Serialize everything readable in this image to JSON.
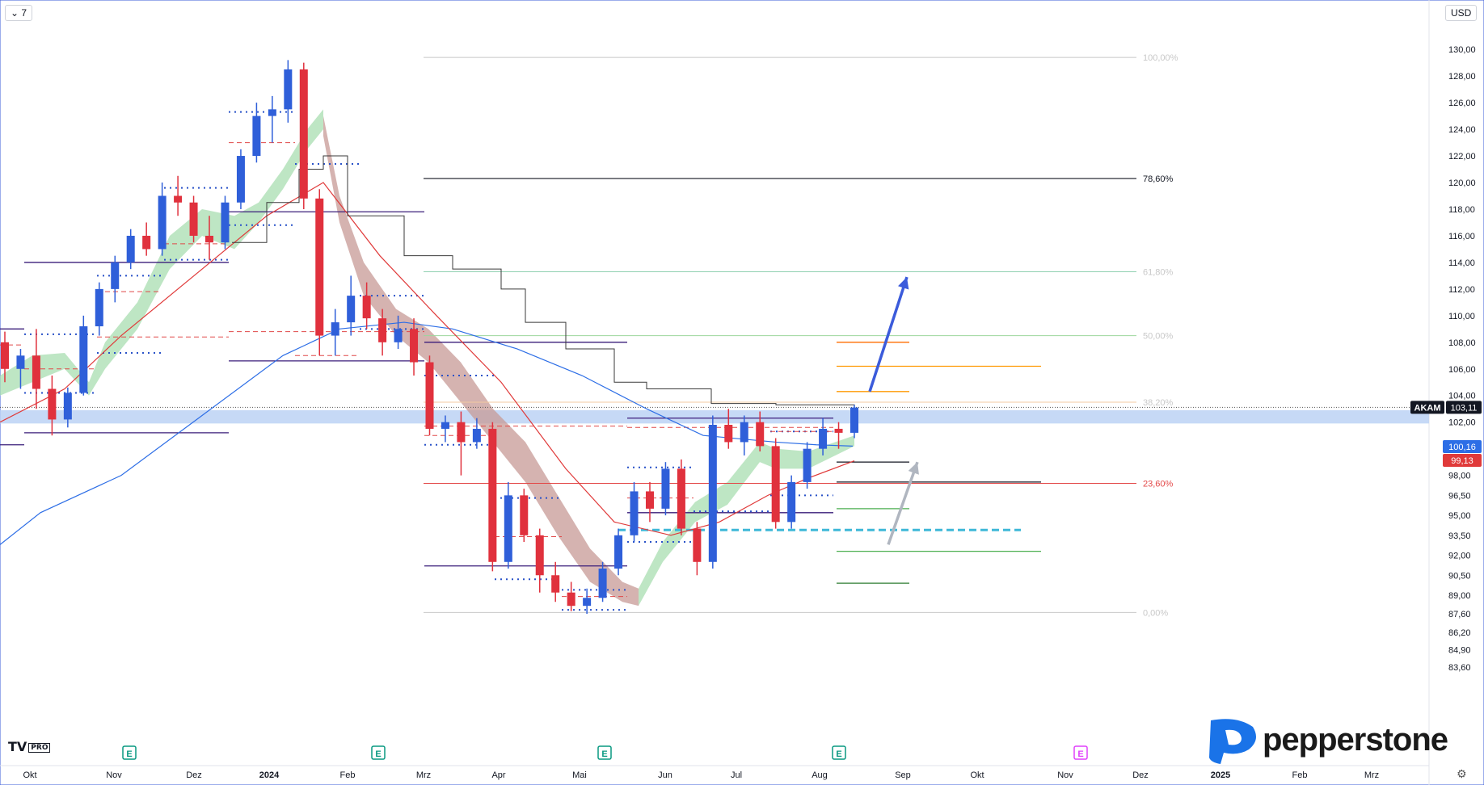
{
  "toolbar": {
    "interval_label": "7",
    "currency_label": "USD"
  },
  "branding": {
    "tv_label": "TV",
    "pro_label": "PRO",
    "pepperstone_label": "pepperstone"
  },
  "colors": {
    "up": "#2f5fd9",
    "down": "#e0313d",
    "price_tag": "#131722",
    "ma_blue": "#2d6ee6",
    "ma_red": "#e03a3a"
  },
  "chart_data": {
    "type": "candlestick",
    "symbol": "AKAM",
    "title": "",
    "xlabel": "",
    "ylabel": "",
    "ylim": [
      83.6,
      130.8
    ],
    "y_ticks": [
      "130,00",
      "128,00",
      "126,00",
      "124,00",
      "122,00",
      "120,00",
      "118,00",
      "116,00",
      "114,00",
      "112,00",
      "110,00",
      "108,00",
      "106,00",
      "104,00",
      "102,00",
      "100,16",
      "99,13",
      "98,00",
      "96,50",
      "95,00",
      "93,50",
      "92,00",
      "90,50",
      "89,00",
      "87,60",
      "86,20",
      "84,90",
      "83,60"
    ],
    "x_ticks": [
      "Okt",
      "Nov",
      "Dez",
      "2024",
      "Feb",
      "Mrz",
      "Apr",
      "Mai",
      "Jun",
      "Jul",
      "Aug",
      "Sep",
      "Okt",
      "Nov",
      "Dez",
      "2025",
      "Feb",
      "Mrz"
    ],
    "last_price": {
      "label": "AKAM",
      "value": "103,11"
    },
    "indicator_tags": [
      {
        "value": "100,16",
        "color": "#2d6ee6"
      },
      {
        "value": "99,13",
        "color": "#e03a3a"
      }
    ],
    "fibonacci": {
      "levels": [
        {
          "label": "100,00%",
          "price": 129.4
        },
        {
          "label": "78,60%",
          "price": 120.3
        },
        {
          "label": "61,80%",
          "price": 113.3
        },
        {
          "label": "50,00%",
          "price": 108.5
        },
        {
          "label": "38,20%",
          "price": 103.5
        },
        {
          "label": "23,60%",
          "price": 97.4
        },
        {
          "label": "0,00%",
          "price": 87.7
        }
      ]
    },
    "earnings_markers": [
      "E",
      "E",
      "E",
      "E",
      "E"
    ],
    "candles_weekly": [
      {
        "o": 108.0,
        "h": 108.8,
        "l": 105.0,
        "c": 106.0
      },
      {
        "o": 106.0,
        "h": 107.5,
        "l": 104.5,
        "c": 107.0
      },
      {
        "o": 107.0,
        "h": 109.0,
        "l": 103.0,
        "c": 104.5
      },
      {
        "o": 104.5,
        "h": 105.5,
        "l": 101.0,
        "c": 102.2
      },
      {
        "o": 102.2,
        "h": 104.6,
        "l": 101.6,
        "c": 104.2
      },
      {
        "o": 104.2,
        "h": 110.0,
        "l": 104.0,
        "c": 109.2
      },
      {
        "o": 109.2,
        "h": 112.5,
        "l": 108.5,
        "c": 112.0
      },
      {
        "o": 112.0,
        "h": 114.5,
        "l": 111.0,
        "c": 114.0
      },
      {
        "o": 114.0,
        "h": 116.5,
        "l": 113.5,
        "c": 116.0
      },
      {
        "o": 116.0,
        "h": 117.0,
        "l": 114.5,
        "c": 115.0
      },
      {
        "o": 115.0,
        "h": 120.0,
        "l": 114.5,
        "c": 119.0
      },
      {
        "o": 119.0,
        "h": 120.5,
        "l": 117.5,
        "c": 118.5
      },
      {
        "o": 118.5,
        "h": 119.0,
        "l": 115.5,
        "c": 116.0
      },
      {
        "o": 116.0,
        "h": 117.5,
        "l": 114.2,
        "c": 115.5
      },
      {
        "o": 115.5,
        "h": 119.0,
        "l": 115.0,
        "c": 118.5
      },
      {
        "o": 118.5,
        "h": 122.5,
        "l": 118.0,
        "c": 122.0
      },
      {
        "o": 122.0,
        "h": 126.0,
        "l": 121.5,
        "c": 125.0
      },
      {
        "o": 125.0,
        "h": 126.5,
        "l": 123.0,
        "c": 125.5
      },
      {
        "o": 125.5,
        "h": 129.2,
        "l": 124.5,
        "c": 128.5
      },
      {
        "o": 128.5,
        "h": 129.0,
        "l": 118.0,
        "c": 118.8
      },
      {
        "o": 118.8,
        "h": 119.5,
        "l": 107.0,
        "c": 108.5
      },
      {
        "o": 108.5,
        "h": 110.5,
        "l": 107.0,
        "c": 109.5
      },
      {
        "o": 109.5,
        "h": 113.0,
        "l": 108.5,
        "c": 111.5
      },
      {
        "o": 111.5,
        "h": 112.5,
        "l": 109.0,
        "c": 109.8
      },
      {
        "o": 109.8,
        "h": 110.5,
        "l": 107.0,
        "c": 108.0
      },
      {
        "o": 108.0,
        "h": 110.0,
        "l": 107.5,
        "c": 109.0
      },
      {
        "o": 109.0,
        "h": 109.8,
        "l": 105.5,
        "c": 106.5
      },
      {
        "o": 106.5,
        "h": 107.0,
        "l": 101.0,
        "c": 101.5
      },
      {
        "o": 101.5,
        "h": 102.5,
        "l": 100.5,
        "c": 102.0
      },
      {
        "o": 102.0,
        "h": 102.8,
        "l": 98.0,
        "c": 100.5
      },
      {
        "o": 100.5,
        "h": 102.3,
        "l": 100.0,
        "c": 101.5
      },
      {
        "o": 101.5,
        "h": 102.0,
        "l": 90.8,
        "c": 91.5
      },
      {
        "o": 91.5,
        "h": 97.5,
        "l": 91.0,
        "c": 96.5
      },
      {
        "o": 96.5,
        "h": 97.0,
        "l": 93.0,
        "c": 93.5
      },
      {
        "o": 93.5,
        "h": 94.0,
        "l": 89.2,
        "c": 90.5
      },
      {
        "o": 90.5,
        "h": 91.5,
        "l": 88.5,
        "c": 89.2
      },
      {
        "o": 89.2,
        "h": 90.0,
        "l": 87.8,
        "c": 88.2
      },
      {
        "o": 88.2,
        "h": 89.5,
        "l": 87.6,
        "c": 88.8
      },
      {
        "o": 88.8,
        "h": 91.5,
        "l": 88.5,
        "c": 91.0
      },
      {
        "o": 91.0,
        "h": 94.0,
        "l": 90.5,
        "c": 93.5
      },
      {
        "o": 93.5,
        "h": 97.5,
        "l": 93.0,
        "c": 96.8
      },
      {
        "o": 96.8,
        "h": 97.5,
        "l": 94.5,
        "c": 95.5
      },
      {
        "o": 95.5,
        "h": 99.0,
        "l": 95.0,
        "c": 98.5
      },
      {
        "o": 98.5,
        "h": 99.2,
        "l": 93.5,
        "c": 94.0
      },
      {
        "o": 94.0,
        "h": 94.5,
        "l": 90.5,
        "c": 91.5
      },
      {
        "o": 91.5,
        "h": 102.5,
        "l": 91.0,
        "c": 101.8
      },
      {
        "o": 101.8,
        "h": 103.0,
        "l": 100.0,
        "c": 100.5
      },
      {
        "o": 100.5,
        "h": 102.5,
        "l": 99.5,
        "c": 102.0
      },
      {
        "o": 102.0,
        "h": 102.8,
        "l": 99.8,
        "c": 100.2
      },
      {
        "o": 100.2,
        "h": 100.8,
        "l": 94.0,
        "c": 94.5
      },
      {
        "o": 94.5,
        "h": 98.0,
        "l": 94.0,
        "c": 97.5
      },
      {
        "o": 97.5,
        "h": 100.5,
        "l": 97.0,
        "c": 100.0
      },
      {
        "o": 100.0,
        "h": 102.3,
        "l": 99.5,
        "c": 101.5
      },
      {
        "o": 101.5,
        "h": 102.0,
        "l": 100.0,
        "c": 101.2
      },
      {
        "o": 101.2,
        "h": 103.3,
        "l": 100.8,
        "c": 103.1
      }
    ],
    "ma_blue": [
      [
        0,
        92.8
      ],
      [
        50,
        95.2
      ],
      [
        150,
        98.0
      ],
      [
        250,
        102.5
      ],
      [
        350,
        107.0
      ],
      [
        420,
        109.0
      ],
      [
        500,
        109.5
      ],
      [
        560,
        109.0
      ],
      [
        640,
        107.5
      ],
      [
        720,
        105.5
      ],
      [
        800,
        103.0
      ],
      [
        870,
        101.0
      ],
      [
        960,
        100.5
      ],
      [
        1010,
        100.3
      ],
      [
        1055,
        100.2
      ]
    ],
    "ma_red": [
      [
        0,
        102.0
      ],
      [
        80,
        104.5
      ],
      [
        150,
        108.5
      ],
      [
        250,
        113.5
      ],
      [
        330,
        117.5
      ],
      [
        400,
        120.0
      ],
      [
        470,
        114.5
      ],
      [
        540,
        110.0
      ],
      [
        620,
        105.0
      ],
      [
        700,
        98.5
      ],
      [
        760,
        94.5
      ],
      [
        830,
        93.5
      ],
      [
        890,
        94.5
      ],
      [
        950,
        96.5
      ],
      [
        1000,
        97.8
      ],
      [
        1057,
        99.1
      ]
    ],
    "ma_black_step": [
      [
        287,
        115.5
      ],
      [
        330,
        118.5
      ],
      [
        370,
        121.0
      ],
      [
        400,
        122.0
      ],
      [
        430,
        117.5
      ],
      [
        500,
        114.5
      ],
      [
        560,
        113.5
      ],
      [
        620,
        112.0
      ],
      [
        650,
        109.5
      ],
      [
        700,
        107.5
      ],
      [
        760,
        105.0
      ],
      [
        800,
        104.5
      ],
      [
        880,
        103.4
      ],
      [
        960,
        103.3
      ],
      [
        1057,
        103.0
      ]
    ],
    "ribbon_segments": [
      {
        "color": "green",
        "top": [
          [
            0,
            105.5
          ],
          [
            40,
            107.0
          ],
          [
            80,
            107.2
          ],
          [
            110,
            105.0
          ],
          [
            130,
            108.0
          ],
          [
            170,
            111.0
          ],
          [
            210,
            116.0
          ],
          [
            250,
            118.0
          ],
          [
            290,
            117.5
          ],
          [
            320,
            118.5
          ],
          [
            350,
            121.0
          ],
          [
            380,
            124.0
          ],
          [
            400,
            125.5
          ]
        ],
        "bottom": [
          [
            0,
            104.0
          ],
          [
            40,
            105.0
          ],
          [
            80,
            106.0
          ],
          [
            110,
            104.0
          ],
          [
            130,
            106.0
          ],
          [
            170,
            109.0
          ],
          [
            210,
            113.5
          ],
          [
            250,
            116.0
          ],
          [
            290,
            115.0
          ],
          [
            320,
            117.0
          ],
          [
            350,
            119.5
          ],
          [
            380,
            122.5
          ],
          [
            400,
            124.0
          ]
        ]
      },
      {
        "color": "brown",
        "top": [
          [
            400,
            125.0
          ],
          [
            420,
            119.0
          ],
          [
            450,
            114.0
          ],
          [
            490,
            110.5
          ],
          [
            530,
            109.0
          ],
          [
            570,
            106.5
          ],
          [
            610,
            103.0
          ],
          [
            650,
            100.5
          ],
          [
            690,
            96.5
          ],
          [
            730,
            92.5
          ],
          [
            770,
            90.0
          ],
          [
            790,
            89.5
          ]
        ],
        "bottom": [
          [
            400,
            123.5
          ],
          [
            420,
            117.0
          ],
          [
            450,
            111.5
          ],
          [
            490,
            108.5
          ],
          [
            530,
            106.5
          ],
          [
            570,
            103.5
          ],
          [
            610,
            100.5
          ],
          [
            650,
            97.5
          ],
          [
            690,
            93.5
          ],
          [
            730,
            90.0
          ],
          [
            770,
            88.5
          ],
          [
            790,
            88.2
          ]
        ]
      },
      {
        "color": "green",
        "top": [
          [
            790,
            89.5
          ],
          [
            820,
            93.0
          ],
          [
            860,
            96.0
          ],
          [
            900,
            97.5
          ],
          [
            940,
            100.5
          ],
          [
            960,
            100.0
          ],
          [
            1000,
            99.8
          ],
          [
            1057,
            101.0
          ]
        ],
        "bottom": [
          [
            790,
            88.2
          ],
          [
            820,
            91.5
          ],
          [
            860,
            94.5
          ],
          [
            900,
            95.8
          ],
          [
            940,
            99.0
          ],
          [
            960,
            98.5
          ],
          [
            1000,
            98.5
          ],
          [
            1057,
            100.2
          ]
        ]
      }
    ],
    "horizontal_lines": [
      {
        "x1": 0,
        "x2": 30,
        "price": 109.0,
        "color": "#3a1d7a"
      },
      {
        "x1": 30,
        "x2": 283,
        "price": 114.0,
        "color": "#3a1d7a"
      },
      {
        "x1": 30,
        "x2": 283,
        "price": 101.2,
        "color": "#3a1d7a"
      },
      {
        "x1": 0,
        "x2": 30,
        "price": 100.3,
        "color": "#3a1d7a"
      },
      {
        "x1": 283,
        "x2": 525,
        "price": 117.8,
        "color": "#3a1d7a"
      },
      {
        "x1": 283,
        "x2": 525,
        "price": 106.6,
        "color": "#3a1d7a"
      },
      {
        "x1": 525,
        "x2": 776,
        "price": 108.0,
        "color": "#3a1d7a"
      },
      {
        "x1": 525,
        "x2": 776,
        "price": 91.2,
        "color": "#3a1d7a"
      },
      {
        "x1": 776,
        "x2": 1031,
        "price": 102.3,
        "color": "#3a1d7a"
      },
      {
        "x1": 776,
        "x2": 1031,
        "price": 95.2,
        "color": "#3a1d7a"
      },
      {
        "x1": 1035,
        "x2": 1125,
        "price": 99.0,
        "color": "#131722"
      },
      {
        "x1": 1035,
        "x2": 1288,
        "price": 97.5,
        "color": "#131722"
      },
      {
        "x1": 1035,
        "x2": 1125,
        "price": 95.5,
        "color": "#4caf50"
      },
      {
        "x1": 1035,
        "x2": 1288,
        "price": 92.3,
        "color": "#4caf50"
      },
      {
        "x1": 1035,
        "x2": 1125,
        "price": 89.9,
        "color": "#2e7d32"
      },
      {
        "x1": 1035,
        "x2": 1125,
        "price": 108.0,
        "color": "#ff6d00"
      },
      {
        "x1": 1035,
        "x2": 1288,
        "price": 106.2,
        "color": "#ff9800"
      },
      {
        "x1": 1035,
        "x2": 1125,
        "price": 104.3,
        "color": "#ff9800"
      }
    ],
    "dotted_lines": [
      {
        "x1": 30,
        "x2": 120,
        "price": 104.2
      },
      {
        "x1": 30,
        "x2": 120,
        "price": 108.6
      },
      {
        "x1": 120,
        "x2": 200,
        "price": 107.2
      },
      {
        "x1": 120,
        "x2": 200,
        "price": 113.0
      },
      {
        "x1": 203,
        "x2": 283,
        "price": 119.6
      },
      {
        "x1": 203,
        "x2": 283,
        "price": 114.2
      },
      {
        "x1": 283,
        "x2": 365,
        "price": 125.3
      },
      {
        "x1": 283,
        "x2": 365,
        "price": 116.8
      },
      {
        "x1": 365,
        "x2": 445,
        "price": 121.4
      },
      {
        "x1": 445,
        "x2": 525,
        "price": 111.5
      },
      {
        "x1": 445,
        "x2": 525,
        "price": 109.0
      },
      {
        "x1": 525,
        "x2": 612,
        "price": 105.5
      },
      {
        "x1": 525,
        "x2": 612,
        "price": 100.3
      },
      {
        "x1": 612,
        "x2": 695,
        "price": 96.3
      },
      {
        "x1": 612,
        "x2": 695,
        "price": 90.2
      },
      {
        "x1": 695,
        "x2": 776,
        "price": 89.4
      },
      {
        "x1": 695,
        "x2": 776,
        "price": 87.9
      },
      {
        "x1": 776,
        "x2": 858,
        "price": 98.6
      },
      {
        "x1": 776,
        "x2": 858,
        "price": 93.0
      },
      {
        "x1": 858,
        "x2": 953,
        "price": 95.3
      },
      {
        "x1": 953,
        "x2": 1031,
        "price": 101.3
      },
      {
        "x1": 953,
        "x2": 1031,
        "price": 96.5
      }
    ],
    "dashed_red_lines": [
      {
        "x1": 0,
        "x2": 30,
        "price": 107.8
      },
      {
        "x1": 30,
        "x2": 120,
        "price": 106.0
      },
      {
        "x1": 120,
        "x2": 200,
        "price": 111.8
      },
      {
        "x1": 120,
        "x2": 283,
        "price": 108.4
      },
      {
        "x1": 203,
        "x2": 283,
        "price": 115.4
      },
      {
        "x1": 283,
        "x2": 365,
        "price": 123.0
      },
      {
        "x1": 283,
        "x2": 525,
        "price": 108.8
      },
      {
        "x1": 365,
        "x2": 445,
        "price": 107.0
      },
      {
        "x1": 525,
        "x2": 776,
        "price": 101.7
      },
      {
        "x1": 525,
        "x2": 612,
        "price": 101.0
      },
      {
        "x1": 612,
        "x2": 695,
        "price": 93.4
      },
      {
        "x1": 695,
        "x2": 776,
        "price": 88.9
      },
      {
        "x1": 776,
        "x2": 858,
        "price": 96.3
      },
      {
        "x1": 776,
        "x2": 1031,
        "price": 101.6
      },
      {
        "x1": 953,
        "x2": 1031,
        "price": 101.3
      }
    ],
    "support_zone": {
      "low": 101.9,
      "high": 102.9
    },
    "support_dashed": {
      "x1": 765,
      "x2": 1263,
      "price": 93.9
    },
    "arrows": [
      {
        "from": {
          "x": 1076,
          "price": 104.3
        },
        "to": {
          "x": 1122,
          "price": 112.9
        },
        "color": "#3b5bdb"
      },
      {
        "from": {
          "x": 1099,
          "price": 92.8
        },
        "to": {
          "x": 1135,
          "price": 99.0
        },
        "color": "#b0b6c0"
      }
    ]
  }
}
